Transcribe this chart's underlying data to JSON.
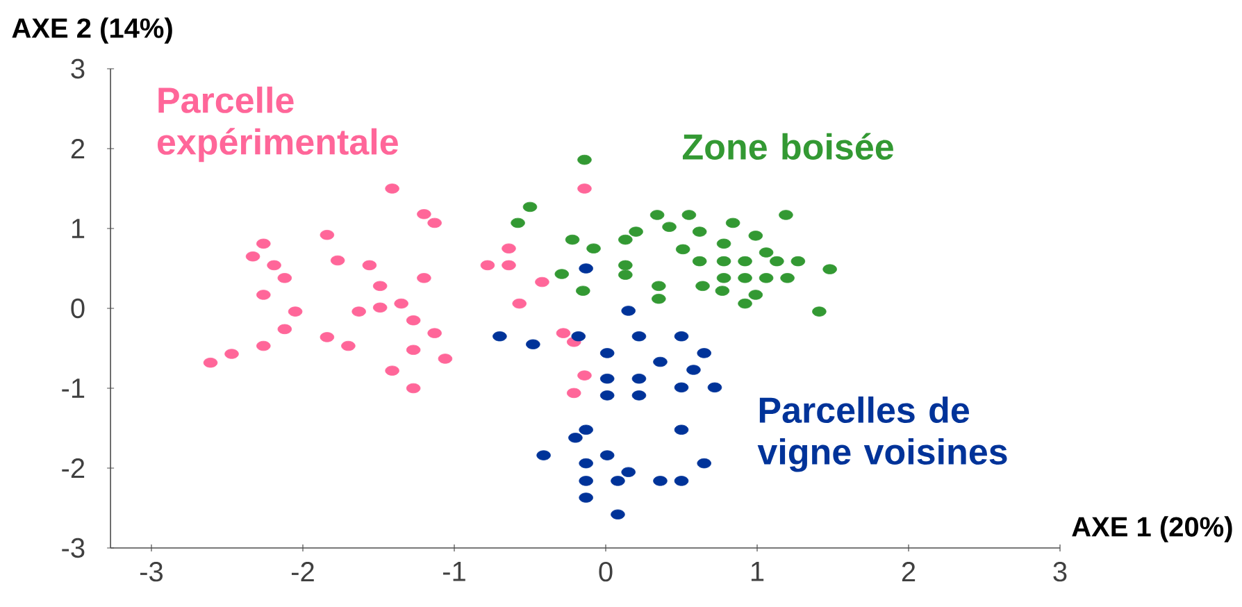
{
  "chart_data": {
    "type": "scatter",
    "xlabel": "AXE 1 (20%)",
    "ylabel": "AXE 2 (14%)",
    "xlim": [
      -3.27,
      3
    ],
    "ylim": [
      -3,
      3
    ],
    "xticks": [
      -3,
      -2,
      -1,
      0,
      1,
      2,
      3
    ],
    "yticks": [
      -3,
      -2,
      -1,
      0,
      1,
      2,
      3
    ],
    "marker": "circle",
    "series": [
      {
        "name": "Parcelle expérimentale",
        "color": "#ff6699",
        "x": [
          -1.41,
          -1.2,
          -1.13,
          -2.26,
          -1.84,
          -2.33,
          -2.19,
          -1.77,
          -1.56,
          -0.78,
          -2.12,
          -1.2,
          -1.49,
          -2.26,
          -2.05,
          -1.63,
          -1.49,
          -1.35,
          -1.27,
          -2.12,
          -1.13,
          -1.84,
          -1.7,
          -2.26,
          -2.47,
          -2.61,
          -1.27,
          -1.06,
          -1.41,
          -1.27,
          -0.14,
          -0.64,
          -0.64,
          -0.42,
          -0.57,
          -0.28,
          -0.21,
          -0.14,
          -0.21
        ],
        "values": [
          1.5,
          1.18,
          1.07,
          0.81,
          0.92,
          0.65,
          0.54,
          0.6,
          0.54,
          0.54,
          0.38,
          0.38,
          0.28,
          0.17,
          -0.04,
          -0.04,
          0.01,
          0.06,
          -0.15,
          -0.26,
          -0.31,
          -0.36,
          -0.47,
          -0.47,
          -0.57,
          -0.68,
          -0.52,
          -0.63,
          -0.78,
          -1.0,
          1.5,
          0.75,
          0.54,
          0.33,
          0.06,
          -0.31,
          -0.42,
          -0.84,
          -1.06
        ]
      },
      {
        "name": "Zone boisée",
        "color": "#339933",
        "x": [
          -0.14,
          -0.5,
          -0.58,
          0.34,
          0.55,
          0.42,
          0.62,
          0.84,
          1.19,
          0.2,
          0.13,
          -0.22,
          -0.08,
          0.99,
          0.78,
          0.51,
          1.06,
          0.62,
          0.78,
          0.92,
          1.13,
          1.27,
          1.48,
          0.13,
          0.13,
          -0.29,
          0.78,
          0.92,
          1.06,
          1.2,
          -0.15,
          0.35,
          0.64,
          0.77,
          0.99,
          0.35,
          0.92,
          1.41
        ],
        "values": [
          1.86,
          1.27,
          1.07,
          1.17,
          1.17,
          1.02,
          0.96,
          1.07,
          1.17,
          0.96,
          0.86,
          0.86,
          0.75,
          0.91,
          0.81,
          0.74,
          0.7,
          0.59,
          0.59,
          0.59,
          0.59,
          0.59,
          0.49,
          0.54,
          0.42,
          0.43,
          0.38,
          0.38,
          0.38,
          0.38,
          0.22,
          0.28,
          0.28,
          0.22,
          0.17,
          0.12,
          0.06,
          -0.04
        ]
      },
      {
        "name": "Parcelles de vigne voisines",
        "color": "#003399",
        "x": [
          -0.13,
          0.15,
          -0.7,
          -0.48,
          -0.18,
          0.22,
          0.5,
          0.01,
          0.65,
          0.36,
          0.58,
          0.01,
          0.22,
          0.5,
          0.72,
          0.01,
          0.22,
          -0.13,
          -0.2,
          0.5,
          -0.41,
          0.01,
          -0.13,
          0.65,
          0.15,
          -0.13,
          0.08,
          0.36,
          0.5,
          -0.13,
          0.08
        ],
        "values": [
          0.5,
          -0.03,
          -0.35,
          -0.45,
          -0.35,
          -0.35,
          -0.35,
          -0.56,
          -0.56,
          -0.67,
          -0.77,
          -0.88,
          -0.88,
          -0.99,
          -0.99,
          -1.09,
          -1.09,
          -1.52,
          -1.62,
          -1.52,
          -1.84,
          -1.84,
          -1.94,
          -1.94,
          -2.05,
          -2.16,
          -2.16,
          -2.16,
          -2.16,
          -2.37,
          -2.58
        ]
      }
    ]
  }
}
